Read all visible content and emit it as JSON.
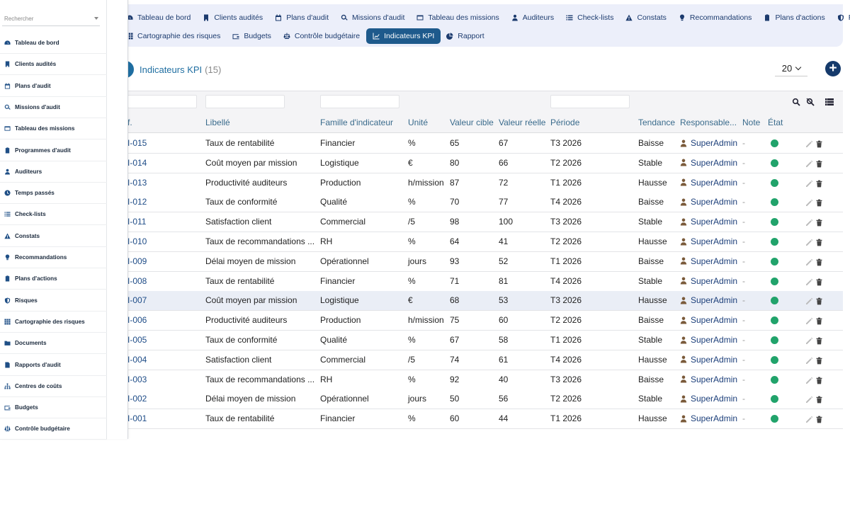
{
  "topnav": {
    "row1": [
      {
        "label": "Tableau de bord",
        "icon": "dashboard-icon"
      },
      {
        "label": "Clients audités",
        "icon": "building-icon"
      },
      {
        "label": "Plans d'audit",
        "icon": "calendar-icon"
      },
      {
        "label": "Missions d'audit",
        "icon": "search-icon"
      },
      {
        "label": "Tableau des missions",
        "icon": "table-icon"
      },
      {
        "label": "Auditeurs",
        "icon": "user-icon"
      },
      {
        "label": "Check-lists",
        "icon": "checklist-icon"
      },
      {
        "label": "Constats",
        "icon": "warning-icon"
      },
      {
        "label": "Recommandations",
        "icon": "lightbulb-icon"
      },
      {
        "label": "Plans d'actions",
        "icon": "clipboard-icon"
      },
      {
        "label": "Risques",
        "icon": "shield-icon"
      }
    ],
    "row2": [
      {
        "label": "Cartographie des risques",
        "icon": "grid-icon",
        "active": false
      },
      {
        "label": "Budgets",
        "icon": "wallet-icon",
        "active": false
      },
      {
        "label": "Contrôle budgétaire",
        "icon": "scale-icon",
        "active": false
      },
      {
        "label": "Indicateurs KPI",
        "icon": "chart-line-icon",
        "active": true
      },
      {
        "label": "Rapport",
        "icon": "pie-chart-icon",
        "active": false
      }
    ]
  },
  "sidebar": {
    "search_placeholder": "Rechercher",
    "items": [
      {
        "label": "Tableau de bord",
        "icon": "dashboard-icon"
      },
      {
        "label": "Clients audités",
        "icon": "building-icon"
      },
      {
        "label": "Plans d'audit",
        "icon": "calendar-icon"
      },
      {
        "label": "Missions d'audit",
        "icon": "search-icon"
      },
      {
        "label": "Tableau des missions",
        "icon": "table-icon"
      },
      {
        "label": "Programmes d'audit",
        "icon": "clipboard-icon"
      },
      {
        "label": "Auditeurs",
        "icon": "user-icon"
      },
      {
        "label": "Temps passés",
        "icon": "clock-icon"
      },
      {
        "label": "Check-lists",
        "icon": "checklist-icon"
      },
      {
        "label": "Constats",
        "icon": "warning-icon"
      },
      {
        "label": "Recommandations",
        "icon": "lightbulb-icon"
      },
      {
        "label": "Plans d'actions",
        "icon": "clipboard-icon"
      },
      {
        "label": "Risques",
        "icon": "shield-icon"
      },
      {
        "label": "Cartographie des risques",
        "icon": "grid-icon"
      },
      {
        "label": "Documents",
        "icon": "folder-icon"
      },
      {
        "label": "Rapports d'audit",
        "icon": "report-icon"
      },
      {
        "label": "Centres de coûts",
        "icon": "sitemap-icon"
      },
      {
        "label": "Budgets",
        "icon": "wallet-icon"
      },
      {
        "label": "Contrôle budgétaire",
        "icon": "scale-icon"
      }
    ]
  },
  "header": {
    "title": "Indicateurs KPI",
    "count": "(15)",
    "per_page": "20"
  },
  "table": {
    "columns": [
      "f.",
      "Libellé",
      "Famille d'indicateur",
      "Unité",
      "Valeur cible",
      "Valeur réelle",
      "Période",
      "Tendance",
      "Responsable...",
      "Note",
      "État"
    ],
    "rows": [
      {
        "ref": "I-015",
        "libelle": "Taux de rentabilité",
        "famille": "Financier",
        "unite": "%",
        "cible": "65",
        "reelle": "67",
        "periode": "T3 2026",
        "tendance": "Baisse",
        "resp": "SuperAdmin",
        "note": "-"
      },
      {
        "ref": "I-014",
        "libelle": "Coût moyen par mission",
        "famille": "Logistique",
        "unite": "€",
        "cible": "80",
        "reelle": "66",
        "periode": "T2 2026",
        "tendance": "Stable",
        "resp": "SuperAdmin",
        "note": "-"
      },
      {
        "ref": "I-013",
        "libelle": "Productivité auditeurs",
        "famille": "Production",
        "unite": "h/mission",
        "cible": "87",
        "reelle": "72",
        "periode": "T1 2026",
        "tendance": "Hausse",
        "resp": "SuperAdmin",
        "note": "-"
      },
      {
        "ref": "I-012",
        "libelle": "Taux de conformité",
        "famille": "Qualité",
        "unite": "%",
        "cible": "70",
        "reelle": "77",
        "periode": "T4 2026",
        "tendance": "Baisse",
        "resp": "SuperAdmin",
        "note": "-"
      },
      {
        "ref": "I-011",
        "libelle": "Satisfaction client",
        "famille": "Commercial",
        "unite": "/5",
        "cible": "98",
        "reelle": "100",
        "periode": "T3 2026",
        "tendance": "Stable",
        "resp": "SuperAdmin",
        "note": "-"
      },
      {
        "ref": "I-010",
        "libelle": "Taux de recommandations ...",
        "famille": "RH",
        "unite": "%",
        "cible": "64",
        "reelle": "41",
        "periode": "T2 2026",
        "tendance": "Hausse",
        "resp": "SuperAdmin",
        "note": "-"
      },
      {
        "ref": "I-009",
        "libelle": "Délai moyen de mission",
        "famille": "Opérationnel",
        "unite": "jours",
        "cible": "93",
        "reelle": "52",
        "periode": "T1 2026",
        "tendance": "Baisse",
        "resp": "SuperAdmin",
        "note": "-"
      },
      {
        "ref": "I-008",
        "libelle": "Taux de rentabilité",
        "famille": "Financier",
        "unite": "%",
        "cible": "71",
        "reelle": "81",
        "periode": "T4 2026",
        "tendance": "Stable",
        "resp": "SuperAdmin",
        "note": "-"
      },
      {
        "ref": "I-007",
        "libelle": "Coût moyen par mission",
        "famille": "Logistique",
        "unite": "€",
        "cible": "68",
        "reelle": "53",
        "periode": "T3 2026",
        "tendance": "Hausse",
        "resp": "SuperAdmin",
        "note": "-",
        "highlight": true
      },
      {
        "ref": "I-006",
        "libelle": "Productivité auditeurs",
        "famille": "Production",
        "unite": "h/mission",
        "cible": "75",
        "reelle": "60",
        "periode": "T2 2026",
        "tendance": "Baisse",
        "resp": "SuperAdmin",
        "note": "-"
      },
      {
        "ref": "I-005",
        "libelle": "Taux de conformité",
        "famille": "Qualité",
        "unite": "%",
        "cible": "67",
        "reelle": "58",
        "periode": "T1 2026",
        "tendance": "Stable",
        "resp": "SuperAdmin",
        "note": "-"
      },
      {
        "ref": "I-004",
        "libelle": "Satisfaction client",
        "famille": "Commercial",
        "unite": "/5",
        "cible": "74",
        "reelle": "61",
        "periode": "T4 2026",
        "tendance": "Hausse",
        "resp": "SuperAdmin",
        "note": "-"
      },
      {
        "ref": "I-003",
        "libelle": "Taux de recommandations ...",
        "famille": "RH",
        "unite": "%",
        "cible": "92",
        "reelle": "40",
        "periode": "T3 2026",
        "tendance": "Baisse",
        "resp": "SuperAdmin",
        "note": "-"
      },
      {
        "ref": "I-002",
        "libelle": "Délai moyen de mission",
        "famille": "Opérationnel",
        "unite": "jours",
        "cible": "50",
        "reelle": "56",
        "periode": "T2 2026",
        "tendance": "Stable",
        "resp": "SuperAdmin",
        "note": "-"
      },
      {
        "ref": "I-001",
        "libelle": "Taux de rentabilité",
        "famille": "Financier",
        "unite": "%",
        "cible": "60",
        "reelle": "44",
        "periode": "T1 2026",
        "tendance": "Hausse",
        "resp": "SuperAdmin",
        "note": "-"
      }
    ]
  },
  "colors": {
    "accent": "#1f6ea1",
    "nav_active": "#1e5a8c",
    "status_ok": "#21a36b",
    "nav_bg": "#eceffa"
  }
}
